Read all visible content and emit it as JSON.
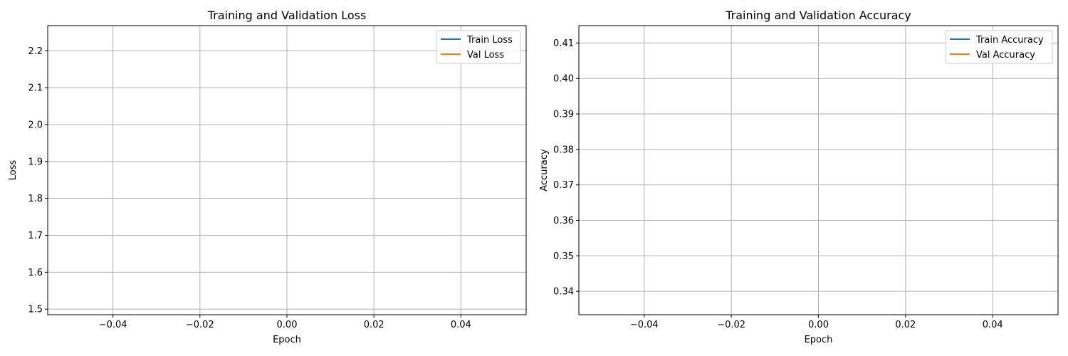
{
  "chart_data": [
    {
      "type": "line",
      "title": "Training and Validation Loss",
      "xlabel": "Epoch",
      "ylabel": "Loss",
      "xlim": [
        -0.055,
        0.055
      ],
      "ylim": [
        1.485,
        2.268
      ],
      "xticks": [
        -0.04,
        -0.02,
        0.0,
        0.02,
        0.04
      ],
      "xtick_labels": [
        "−0.04",
        "−0.02",
        "0.00",
        "0.02",
        "0.04"
      ],
      "yticks": [
        1.5,
        1.6,
        1.7,
        1.8,
        1.9,
        2.0,
        2.1,
        2.2
      ],
      "ytick_labels": [
        "1.5",
        "1.6",
        "1.7",
        "1.8",
        "1.9",
        "2.0",
        "2.1",
        "2.2"
      ],
      "grid": true,
      "legend_position": "top-right",
      "series": [
        {
          "name": "Train Loss",
          "color": "#1f77b4",
          "x": [],
          "values": []
        },
        {
          "name": "Val Loss",
          "color": "#ff7f0e",
          "x": [],
          "values": []
        }
      ]
    },
    {
      "type": "line",
      "title": "Training and Validation Accuracy",
      "xlabel": "Epoch",
      "ylabel": "Accuracy",
      "xlim": [
        -0.055,
        0.055
      ],
      "ylim": [
        0.3334,
        0.4149
      ],
      "xticks": [
        -0.04,
        -0.02,
        0.0,
        0.02,
        0.04
      ],
      "xtick_labels": [
        "−0.04",
        "−0.02",
        "0.00",
        "0.02",
        "0.04"
      ],
      "yticks": [
        0.34,
        0.35,
        0.36,
        0.37,
        0.38,
        0.39,
        0.4,
        0.41
      ],
      "ytick_labels": [
        "0.34",
        "0.35",
        "0.36",
        "0.37",
        "0.38",
        "0.39",
        "0.40",
        "0.41"
      ],
      "grid": true,
      "legend_position": "top-right",
      "series": [
        {
          "name": "Train Accuracy",
          "color": "#1f77b4",
          "x": [],
          "values": []
        },
        {
          "name": "Val Accuracy",
          "color": "#ff7f0e",
          "x": [],
          "values": []
        }
      ]
    }
  ]
}
